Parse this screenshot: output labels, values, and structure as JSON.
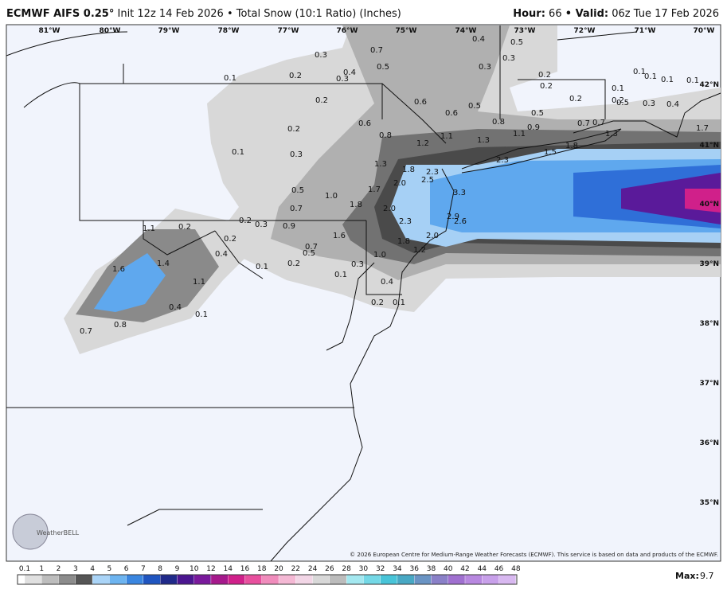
{
  "header": {
    "model": "ECMWF AIFS 0.25°",
    "description": "Init 12z 14 Feb 2026 • Total Snow (10:1 Ratio) (Inches)",
    "hour_label": "Hour:",
    "hour": "66",
    "valid_label": "• Valid:",
    "valid": "06z Tue 17 Feb 2026"
  },
  "longitude_labels": [
    "81°W",
    "80°W",
    "79°W",
    "78°W",
    "77°W",
    "76°W",
    "75°W",
    "74°W",
    "73°W",
    "72°W",
    "71°W",
    "70°W"
  ],
  "latitude_labels": [
    "42°N",
    "41°N",
    "40°N",
    "39°N",
    "38°N",
    "37°N",
    "36°N",
    "35°N"
  ],
  "snow_labels": [
    "0.3",
    "0.7",
    "0.4",
    "0.5",
    "0.4",
    "0.3",
    "0.2",
    "0.1",
    "0.3",
    "0.3",
    "0.5",
    "0.2",
    "0.2",
    "0.1",
    "0.1",
    "0.1",
    "0.1",
    "0.2",
    "0.6",
    "0.5",
    "0.6",
    "0.5",
    "0.2",
    "0.1",
    "0.2",
    "0.5",
    "0.3",
    "0.4",
    "0.6",
    "0.2",
    "0.8",
    "0.9",
    "0.7",
    "0.7",
    "1.3",
    "1.7",
    "0.8",
    "1.2",
    "1.1",
    "1.3",
    "1.1",
    "1.8",
    "1.5",
    "0.1",
    "0.3",
    "2.3",
    "1.3",
    "1.8",
    "2.3",
    "2.5",
    "2.0",
    "0.5",
    "1.0",
    "1.7",
    "3.3",
    "1.8",
    "2.0",
    "0.7",
    "2.9",
    "2.6",
    "2.3",
    "0.2",
    "0.3",
    "0.9",
    "1.1",
    "0.2",
    "0.2",
    "2.0",
    "1.8",
    "1.6",
    "0.7",
    "1.2",
    "0.4",
    "0.5",
    "1.6",
    "1.4",
    "1.0",
    "0.1",
    "0.2",
    "0.3",
    "0.1",
    "1.1",
    "0.4",
    "0.2",
    "0.1",
    "0.4",
    "0.1",
    "0.8",
    "0.7"
  ],
  "logo": "WeatherBELL",
  "copyright": "© 2026 European Centre for Medium-Range Weather Forecasts (ECMWF). This service is based on data and products of the ECMWF.",
  "colorbar_labels": [
    "0.1",
    "1",
    "2",
    "3",
    "4",
    "5",
    "6",
    "7",
    "8",
    "9",
    "10",
    "12",
    "14",
    "16",
    "18",
    "20",
    "22",
    "24",
    "26",
    "28",
    "30",
    "32",
    "34",
    "36",
    "38",
    "40",
    "42",
    "44",
    "46",
    "48"
  ],
  "max_label": "Max:",
  "max_value": "9.7"
}
